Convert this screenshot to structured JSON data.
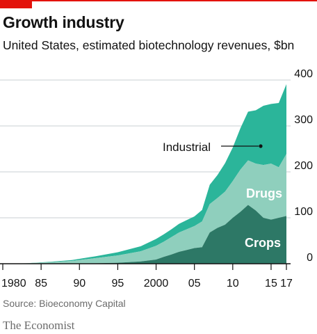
{
  "header": {
    "title": "Growth industry",
    "subtitle": "United States, estimated biotechnology revenues, $bn"
  },
  "footer": {
    "source": "Source: Bioeconomy Capital",
    "brand": "The Economist"
  },
  "colors": {
    "accent": "#e3120b",
    "industrial": "#2bb59a",
    "drugs": "#8fcfbd",
    "crops": "#2d7866",
    "grid": "#c9cfd3",
    "axis": "#121212"
  },
  "chart_data": {
    "type": "area",
    "stacked": true,
    "title": "Growth industry",
    "subtitle": "United States, estimated biotechnology revenues, $bn",
    "xlabel": "",
    "ylabel": "",
    "xlim": [
      1980,
      2017
    ],
    "ylim": [
      0,
      400
    ],
    "y_ticks": [
      0,
      100,
      200,
      300,
      400
    ],
    "x_ticks": [
      {
        "value": 1980,
        "label": "1980"
      },
      {
        "value": 1985,
        "label": "85"
      },
      {
        "value": 1990,
        "label": "90"
      },
      {
        "value": 1995,
        "label": "95"
      },
      {
        "value": 2000,
        "label": "2000"
      },
      {
        "value": 2005,
        "label": "05"
      },
      {
        "value": 2010,
        "label": "10"
      },
      {
        "value": 2015,
        "label": "15"
      },
      {
        "value": 2017,
        "label": "17"
      }
    ],
    "grid": true,
    "legend": "inline labels",
    "x": [
      1980,
      1983,
      1986,
      1989,
      1992,
      1995,
      1998,
      2000,
      2001,
      2002,
      2003,
      2004,
      2005,
      2006,
      2007,
      2008,
      2009,
      2010,
      2011,
      2012,
      2013,
      2014,
      2015,
      2016,
      2017
    ],
    "series": [
      {
        "name": "Crops",
        "values": [
          0,
          0,
          0,
          0,
          1,
          2,
          5,
          9,
          15,
          20,
          26,
          30,
          34,
          36,
          68,
          78,
          85,
          100,
          113,
          128,
          116,
          100,
          96,
          100,
          104
        ]
      },
      {
        "name": "Drugs",
        "values": [
          0,
          1,
          3,
          6,
          11,
          16,
          22,
          30,
          33,
          38,
          42,
          45,
          48,
          56,
          62,
          65,
          72,
          80,
          92,
          97,
          102,
          115,
          122,
          110,
          135
        ]
      },
      {
        "name": "Industrial",
        "values": [
          0,
          0,
          1,
          2,
          4,
          7,
          11,
          15,
          16,
          17,
          19,
          20,
          21,
          25,
          42,
          50,
          62,
          73,
          90,
          106,
          116,
          129,
          130,
          140,
          152
        ]
      }
    ],
    "annotations": [
      {
        "text": "Industrial",
        "series": "Industrial"
      },
      {
        "text": "Drugs",
        "series": "Drugs"
      },
      {
        "text": "Crops",
        "series": "Crops"
      }
    ]
  }
}
